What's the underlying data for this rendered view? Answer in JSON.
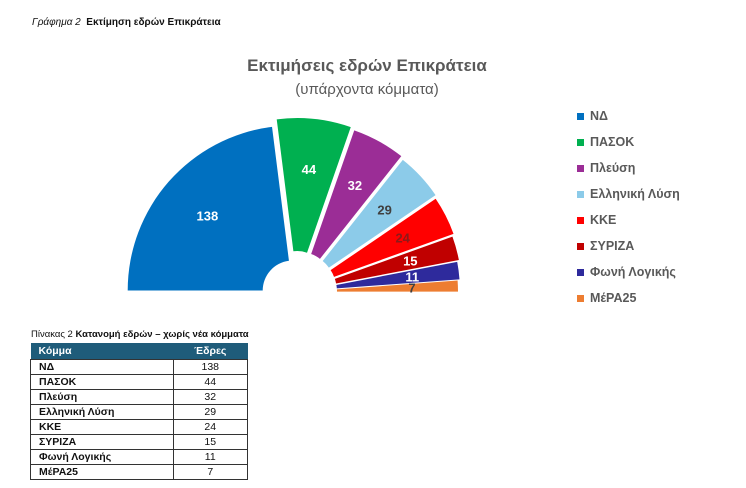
{
  "figure_caption": {
    "prefix": "Γράφημα 2",
    "title": "Εκτίμηση εδρών Επικράτεια"
  },
  "table_caption": {
    "prefix": "Πίνακας 2",
    "title": "Κατανομή εδρών – χωρίς νέα κόμματα"
  },
  "table": {
    "headers": [
      "Κόμμα",
      "Έδρες"
    ],
    "rows": [
      [
        "ΝΔ",
        "138"
      ],
      [
        "ΠΑΣΟΚ",
        "44"
      ],
      [
        "Πλεύση",
        "32"
      ],
      [
        "Ελληνική Λύση",
        "29"
      ],
      [
        "ΚΚΕ",
        "24"
      ],
      [
        "ΣΥΡΙΖΑ",
        "15"
      ],
      [
        "Φωνή Λογικής",
        "11"
      ],
      [
        "ΜέΡΑ25",
        "7"
      ]
    ]
  },
  "chart_data": {
    "type": "pie",
    "variant": "semicircle-doughnut-exploded",
    "title": "Εκτιμήσεις εδρών Επικράτεια",
    "subtitle": "(υπάρχοντα κόμματα)",
    "legend_position": "right",
    "categories": [
      "ΝΔ",
      "ΠΑΣΟΚ",
      "Πλεύση",
      "Ελληνική Λύση",
      "ΚΚΕ",
      "ΣΥΡΙΖΑ",
      "Φωνή Λογικής",
      "ΜέΡΑ25"
    ],
    "values": [
      138,
      44,
      32,
      29,
      24,
      15,
      11,
      7
    ],
    "colors": [
      "#0070c0",
      "#00b050",
      "#9b2d96",
      "#8ccbe9",
      "#ff0000",
      "#c00000",
      "#2e2a9c",
      "#ed7d31"
    ],
    "label_colors": [
      "#ffffff",
      "#ffffff",
      "#ffffff",
      "#404040",
      "#8b1a1a",
      "#ffffff",
      "#ffffff",
      "#404040"
    ]
  }
}
